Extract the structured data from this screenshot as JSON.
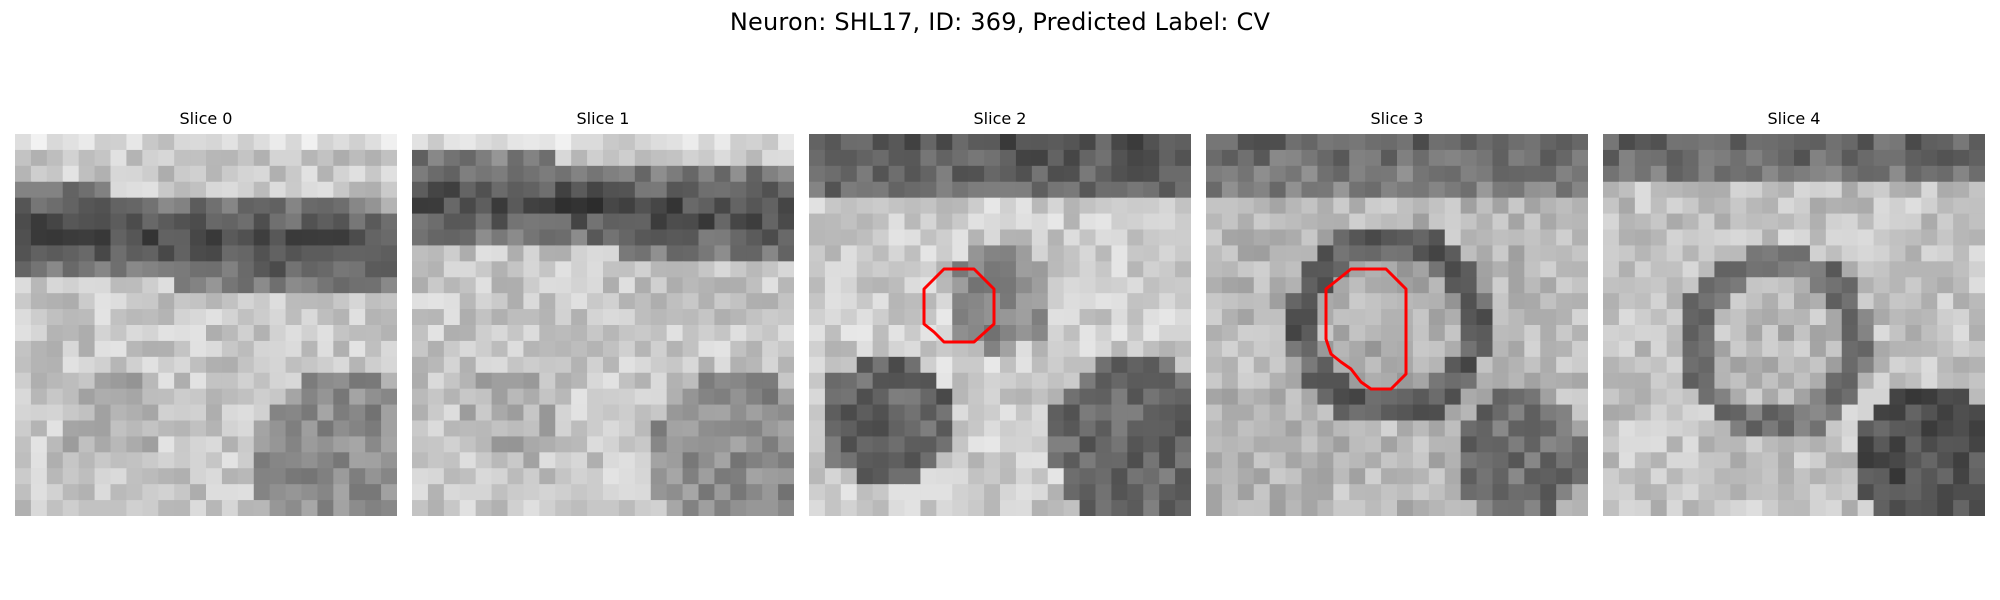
{
  "figure": {
    "title": "Neuron: SHL17, ID: 369, Predicted Label: CV"
  },
  "colors": {
    "background": "#ffffff",
    "contour": "#ff0000",
    "text": "#000000",
    "colormap": "grayscale"
  },
  "panels": [
    {
      "title": "Slice 0",
      "has_contour": false,
      "pattern": "dark-band-top"
    },
    {
      "title": "Slice 1",
      "has_contour": false,
      "pattern": "dark-band-top"
    },
    {
      "title": "Slice 2",
      "has_contour": true,
      "pattern": "vesicle-center"
    },
    {
      "title": "Slice 3",
      "has_contour": true,
      "pattern": "ring"
    },
    {
      "title": "Slice 4",
      "has_contour": false,
      "pattern": "ring-faded"
    }
  ]
}
